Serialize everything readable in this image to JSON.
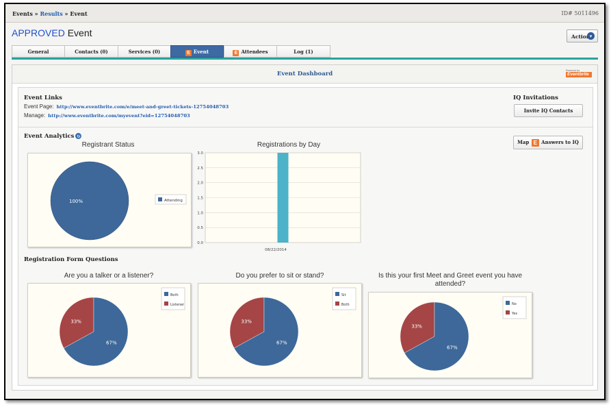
{
  "breadcrumb": {
    "root": "Events",
    "sep": "»",
    "results": "Results",
    "current": "Event"
  },
  "record_id": "ID# 5011496",
  "header": {
    "status": "APPROVED",
    "type": "Event",
    "action_label": "Action"
  },
  "tabs": [
    {
      "label": "General",
      "badge": ""
    },
    {
      "label": "Contacts (0)",
      "badge": ""
    },
    {
      "label": "Services (0)",
      "badge": ""
    },
    {
      "label": "Event",
      "badge": "E",
      "active": true
    },
    {
      "label": "Attendees",
      "badge": "E"
    },
    {
      "label": "Log (1)",
      "badge": ""
    }
  ],
  "dashboard": {
    "title": "Event Dashboard",
    "powered_by": "Powered by",
    "brand": "Eventbrite",
    "brand_color": "#f0772e"
  },
  "links": {
    "title": "Event Links",
    "page_label": "Event Page:",
    "page_url": "http://www.eventbrite.com/e/meet-and-greet-tickets-12754048703",
    "manage_label": "Manage:",
    "manage_url": "http://www.eventbrite.com/myevent?eid=12754048703"
  },
  "iq": {
    "title": "IQ Invitations",
    "invite_label": "Invite IQ Contacts"
  },
  "analytics": {
    "title": "Event Analytics",
    "map_label_pre": "Map",
    "map_label_post": "Answers to IQ",
    "form_questions_title": "Registration Form Questions"
  },
  "chart_data": [
    {
      "type": "pie",
      "title": "Registrant Status",
      "slices": [
        {
          "label": "Attending",
          "value": 100,
          "color": "#3d6899",
          "text": "100%"
        }
      ],
      "legend": "right"
    },
    {
      "type": "bar",
      "title": "Registrations by Day",
      "categories": [
        "08/22/2014"
      ],
      "values": [
        3
      ],
      "color": "#4cb3c9",
      "ylim": [
        0,
        3
      ],
      "yticks": [
        "0.0",
        "0.5",
        "1.0",
        "1.5",
        "2.0",
        "2.5",
        "3.0"
      ],
      "grid": true
    },
    {
      "type": "pie",
      "title": "Are you a talker or a listener?",
      "slices": [
        {
          "label": "Both",
          "value": 67,
          "color": "#3d6899",
          "text": "67%"
        },
        {
          "label": "Listener",
          "value": 33,
          "color": "#a54545",
          "text": "33%"
        }
      ],
      "legend": "top-right"
    },
    {
      "type": "pie",
      "title": "Do you prefer to sit or stand?",
      "slices": [
        {
          "label": "Sit",
          "value": 67,
          "color": "#3d6899",
          "text": "67%"
        },
        {
          "label": "Both",
          "value": 33,
          "color": "#a54545",
          "text": "33%"
        }
      ],
      "legend": "top-right"
    },
    {
      "type": "pie",
      "title": "Is this your first Meet and Greet event you have attended?",
      "slices": [
        {
          "label": "No",
          "value": 67,
          "color": "#3d6899",
          "text": "67%"
        },
        {
          "label": "Yes",
          "value": 33,
          "color": "#a54545",
          "text": "33%"
        }
      ],
      "legend": "top-right"
    }
  ]
}
